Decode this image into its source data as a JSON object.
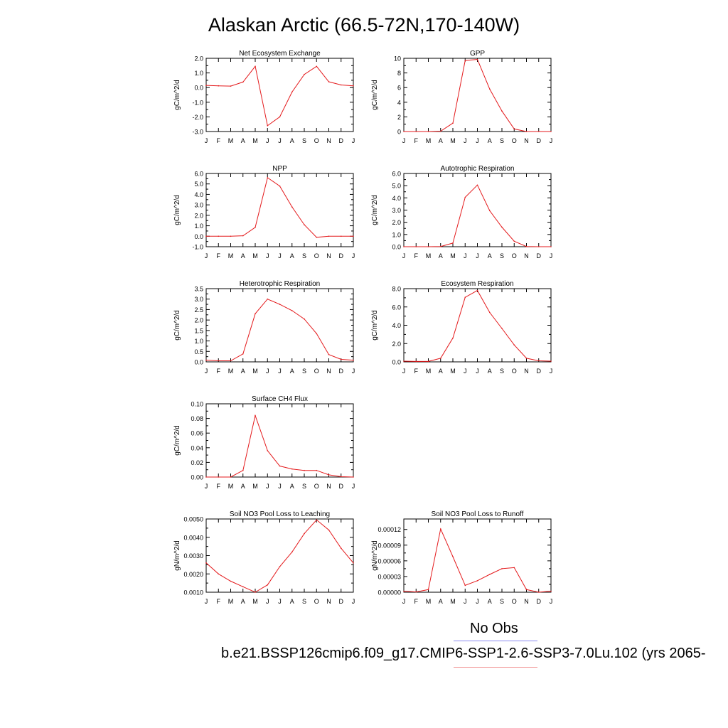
{
  "page_title": "Alaskan Arctic (66.5-72N,170-140W)",
  "legend": {
    "obs_label": "No Obs",
    "model_label": "b.e21.BSSP126cmip6.f09_g17.CMIP6-SSP1-2.6-SSP3-7.0Lu.102 (yrs 2065-",
    "obs_color": "#8c8cf0",
    "model_color": "#f08c8c"
  },
  "colors": {
    "series": "#e41a1c",
    "frame": "#000000",
    "background": "#ffffff"
  },
  "chart_data": [
    {
      "type": "line",
      "title": "Net Ecosystem Exchange",
      "ylabel": "gC/m^2/d",
      "categories": [
        "J",
        "F",
        "M",
        "A",
        "M",
        "J",
        "J",
        "A",
        "S",
        "O",
        "N",
        "D",
        "J"
      ],
      "ylim": [
        -3.0,
        2.0
      ],
      "yticks": [
        "2.0",
        "1.0",
        "0.0",
        "-1.0",
        "-2.0",
        "-3.0"
      ],
      "yticks_values": [
        2.0,
        1.0,
        0.0,
        -1.0,
        -2.0,
        -3.0
      ],
      "values": [
        0.15,
        0.12,
        0.1,
        0.38,
        1.45,
        -2.6,
        -2.0,
        -0.3,
        0.9,
        1.45,
        0.4,
        0.18,
        0.12
      ],
      "grid": false
    },
    {
      "type": "line",
      "title": "GPP",
      "ylabel": "gC/m^2/d",
      "categories": [
        "J",
        "F",
        "M",
        "A",
        "M",
        "J",
        "J",
        "A",
        "S",
        "O",
        "N",
        "D",
        "J"
      ],
      "ylim": [
        0,
        10
      ],
      "yticks": [
        "10",
        "8",
        "6",
        "4",
        "2",
        "0"
      ],
      "yticks_values": [
        10,
        8,
        6,
        4,
        2,
        0
      ],
      "values": [
        0,
        0,
        0,
        0.05,
        1.15,
        9.7,
        9.85,
        5.8,
        2.8,
        0.35,
        0,
        0,
        0
      ],
      "grid": false
    },
    {
      "type": "line",
      "title": "NPP",
      "ylabel": "gC/m^2/d",
      "categories": [
        "J",
        "F",
        "M",
        "A",
        "M",
        "J",
        "J",
        "A",
        "S",
        "O",
        "N",
        "D",
        "J"
      ],
      "ylim": [
        -1.0,
        6.0
      ],
      "yticks": [
        "6.0",
        "5.0",
        "4.0",
        "3.0",
        "2.0",
        "1.0",
        "0.0",
        "-1.0"
      ],
      "yticks_values": [
        6.0,
        5.0,
        4.0,
        3.0,
        2.0,
        1.0,
        0.0,
        -1.0
      ],
      "values": [
        0.0,
        0.0,
        0.0,
        0.05,
        0.85,
        5.6,
        4.8,
        2.8,
        1.1,
        -0.1,
        0.0,
        0.0,
        0.0
      ],
      "grid": false
    },
    {
      "type": "line",
      "title": "Autotrophic Respiration",
      "ylabel": "gC/m^2/d",
      "categories": [
        "J",
        "F",
        "M",
        "A",
        "M",
        "J",
        "J",
        "A",
        "S",
        "O",
        "N",
        "D",
        "J"
      ],
      "ylim": [
        0.0,
        6.0
      ],
      "yticks": [
        "6.0",
        "5.0",
        "4.0",
        "3.0",
        "2.0",
        "1.0",
        "0.0"
      ],
      "yticks_values": [
        6.0,
        5.0,
        4.0,
        3.0,
        2.0,
        1.0,
        0.0
      ],
      "values": [
        0.0,
        0.0,
        0.0,
        0.02,
        0.3,
        4.05,
        5.05,
        2.95,
        1.6,
        0.45,
        0.02,
        0.0,
        0.0
      ],
      "grid": false
    },
    {
      "type": "line",
      "title": "Heterotrophic Respiration",
      "ylabel": "gC/m^2/d",
      "categories": [
        "J",
        "F",
        "M",
        "A",
        "M",
        "J",
        "J",
        "A",
        "S",
        "O",
        "N",
        "D",
        "J"
      ],
      "ylim": [
        0.0,
        3.5
      ],
      "yticks": [
        "3.5",
        "3.0",
        "2.5",
        "2.0",
        "1.5",
        "1.0",
        "0.5",
        "0.0"
      ],
      "yticks_values": [
        3.5,
        3.0,
        2.5,
        2.0,
        1.5,
        1.0,
        0.5,
        0.0
      ],
      "values": [
        0.08,
        0.05,
        0.05,
        0.38,
        2.3,
        3.0,
        2.75,
        2.45,
        2.05,
        1.35,
        0.35,
        0.12,
        0.08
      ],
      "grid": false
    },
    {
      "type": "line",
      "title": "Ecosystem Respiration",
      "ylabel": "gC/m^2/d",
      "categories": [
        "J",
        "F",
        "M",
        "A",
        "M",
        "J",
        "J",
        "A",
        "S",
        "O",
        "N",
        "D",
        "J"
      ],
      "ylim": [
        0.0,
        8.0
      ],
      "yticks": [
        "8.0",
        "6.0",
        "4.0",
        "2.0",
        "0.0"
      ],
      "yticks_values": [
        8.0,
        6.0,
        4.0,
        2.0,
        0.0
      ],
      "values": [
        0.08,
        0.05,
        0.05,
        0.4,
        2.6,
        7.05,
        7.8,
        5.4,
        3.65,
        1.85,
        0.4,
        0.12,
        0.08
      ],
      "grid": false
    },
    {
      "type": "line",
      "title": "Surface CH4 Flux",
      "ylabel": "gC/m^2/d",
      "categories": [
        "J",
        "F",
        "M",
        "A",
        "M",
        "J",
        "J",
        "A",
        "S",
        "O",
        "N",
        "D",
        "J"
      ],
      "ylim": [
        0.0,
        0.1
      ],
      "yticks": [
        "0.10",
        "0.08",
        "0.06",
        "0.04",
        "0.02",
        "0.00"
      ],
      "yticks_values": [
        0.1,
        0.08,
        0.06,
        0.04,
        0.02,
        0.0
      ],
      "values": [
        0.0,
        0.0,
        0.0,
        0.009,
        0.084,
        0.036,
        0.015,
        0.011,
        0.009,
        0.009,
        0.003,
        0.0005,
        0.0
      ],
      "grid": false
    },
    {
      "type": "line",
      "title": "Soil NO3 Pool Loss to Leaching",
      "ylabel": "gN/m^2/d",
      "categories": [
        "J",
        "F",
        "M",
        "A",
        "M",
        "J",
        "J",
        "A",
        "S",
        "O",
        "N",
        "D",
        "J"
      ],
      "ylim": [
        0.001,
        0.005
      ],
      "yticks": [
        "0.0050",
        "0.0040",
        "0.0030",
        "0.0020",
        "0.0010"
      ],
      "yticks_values": [
        0.005,
        0.004,
        0.003,
        0.002,
        0.001
      ],
      "values": [
        0.0026,
        0.002,
        0.0016,
        0.0013,
        0.001,
        0.0014,
        0.0024,
        0.0032,
        0.0042,
        0.00495,
        0.0044,
        0.0034,
        0.0026
      ],
      "grid": false
    },
    {
      "type": "line",
      "title": "Soil NO3 Pool Loss to Runoff",
      "ylabel": "gN/m^2/d",
      "categories": [
        "J",
        "F",
        "M",
        "A",
        "M",
        "J",
        "J",
        "A",
        "S",
        "O",
        "N",
        "D",
        "J"
      ],
      "ylim": [
        0.0,
        0.00014
      ],
      "yticks": [
        "0.00012",
        "0.00009",
        "0.00006",
        "0.00003",
        "0.00000"
      ],
      "yticks_values": [
        0.00012,
        9e-05,
        6e-05,
        3e-05,
        0.0
      ],
      "values": [
        2e-06,
        5e-07,
        5e-06,
        0.000121,
        6.8e-05,
        1.3e-05,
        2.2e-05,
        3.4e-05,
        4.5e-05,
        4.7e-05,
        5e-06,
        0.0,
        2e-06
      ],
      "grid": false
    }
  ]
}
